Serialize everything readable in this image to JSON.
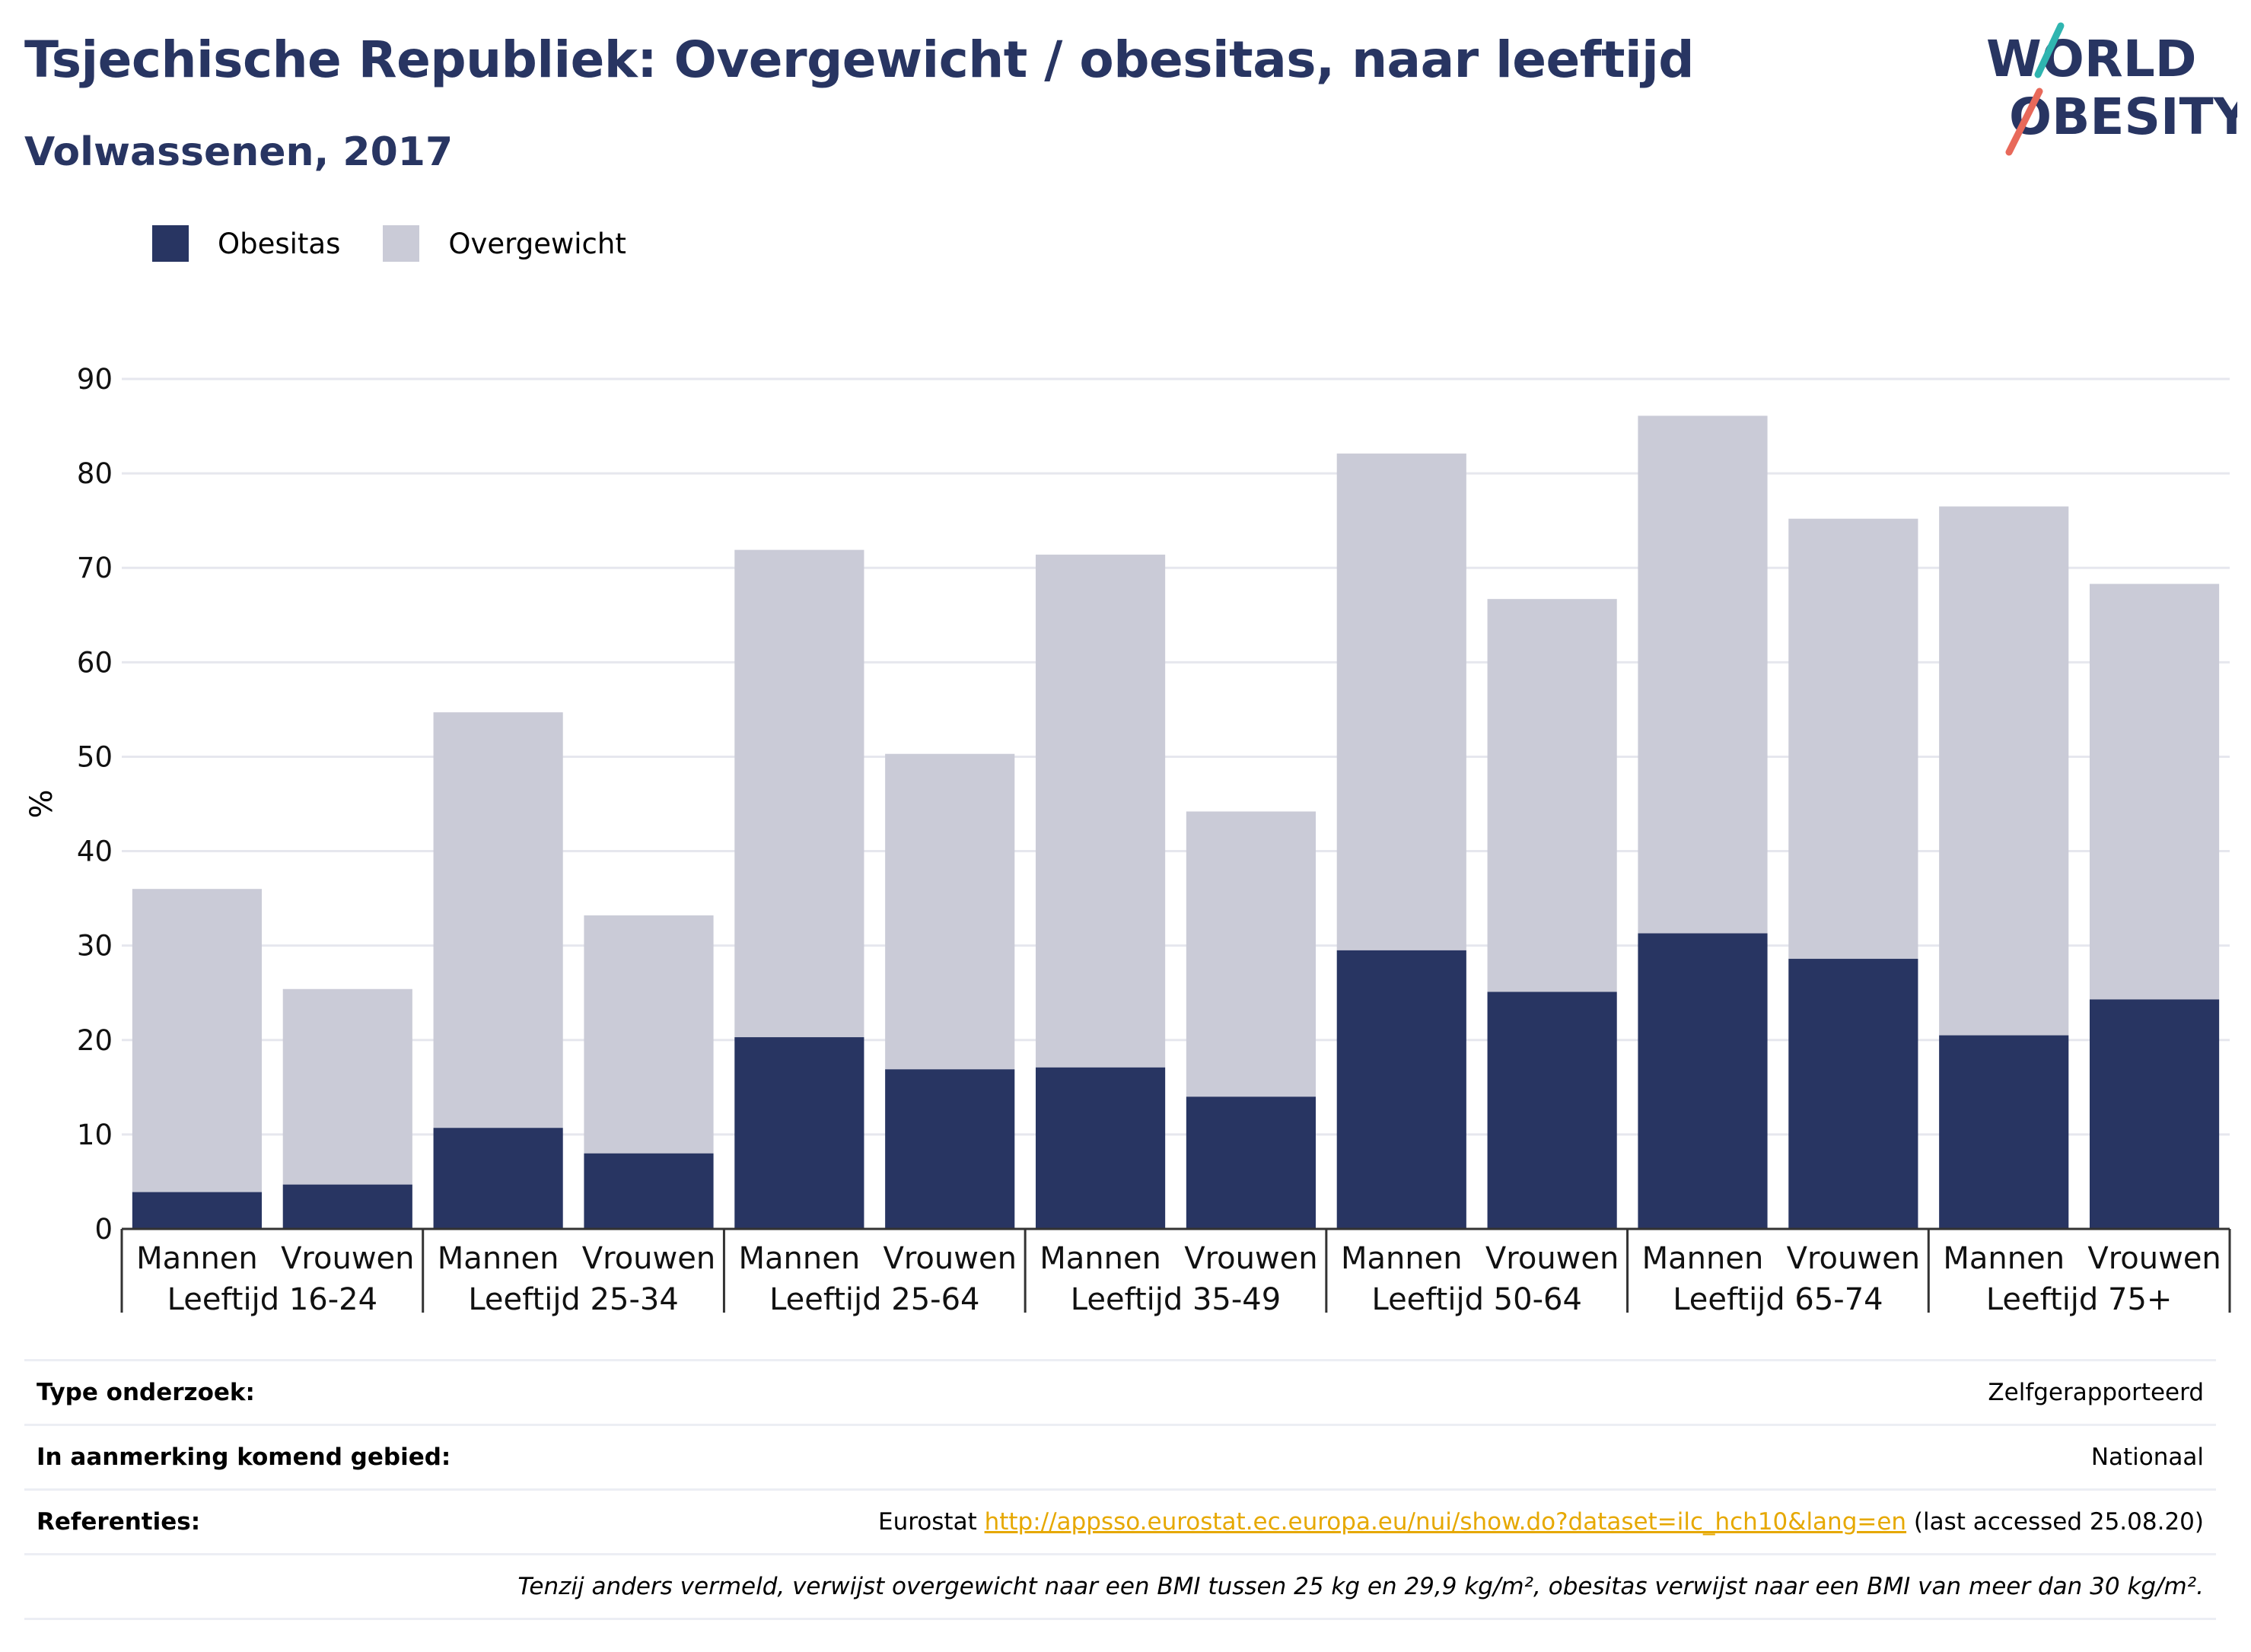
{
  "title": "Tsjechische Republiek: Overgewicht / obesitas, naar leeftijd",
  "subtitle": "Volwassenen, 2017",
  "logo": {
    "line1": "WORLD",
    "line2": "OBESITY"
  },
  "colors": {
    "obesity": "#283562",
    "overweight": "#cacbd7",
    "grid": "#e6e7ee",
    "axis": "#333333"
  },
  "chart_data": {
    "type": "bar",
    "stacked": true,
    "legend_position": "top-left",
    "ylabel": "%",
    "ylim": [
      0,
      90
    ],
    "yticks": [
      0,
      10,
      20,
      30,
      40,
      50,
      60,
      70,
      80,
      90
    ],
    "grid": true,
    "groups": [
      "Leeftijd 16-24",
      "Leeftijd 25-34",
      "Leeftijd 25-64",
      "Leeftijd 35-49",
      "Leeftijd 50-64",
      "Leeftijd 65-74",
      "Leeftijd 75+"
    ],
    "categories": [
      "Mannen",
      "Vrouwen",
      "Mannen",
      "Vrouwen",
      "Mannen",
      "Vrouwen",
      "Mannen",
      "Vrouwen",
      "Mannen",
      "Vrouwen",
      "Mannen",
      "Vrouwen",
      "Mannen",
      "Vrouwen"
    ],
    "series": [
      {
        "name": "Obesitas",
        "color": "#283562",
        "values": [
          3.9,
          4.7,
          10.7,
          8.0,
          20.3,
          16.9,
          17.1,
          14.0,
          29.5,
          25.1,
          31.3,
          28.6,
          20.5,
          24.3
        ]
      },
      {
        "name": "Overgewicht",
        "color": "#cacbd7",
        "values": [
          32.1,
          20.7,
          44.0,
          25.2,
          51.6,
          33.4,
          54.3,
          30.2,
          52.6,
          41.6,
          54.8,
          46.6,
          56.0,
          44.0
        ]
      }
    ]
  },
  "footer": {
    "rows": [
      {
        "label": "Type onderzoek:",
        "value": "Zelfgerapporteerd"
      },
      {
        "label": "In aanmerking komend gebied:",
        "value": "Nationaal"
      }
    ],
    "references": {
      "label": "Referenties:",
      "prefix": "Eurostat ",
      "link": "http://appsso.eurostat.ec.europa.eu/nui/show.do?dataset=ilc_hch10&lang=en",
      "suffix": " (last accessed 25.08.20)"
    },
    "note": "Tenzij anders vermeld, verwijst overgewicht naar een BMI tussen 25 kg en 29,9 kg/m², obesitas verwijst naar een BMI van meer dan 30 kg/m²."
  }
}
